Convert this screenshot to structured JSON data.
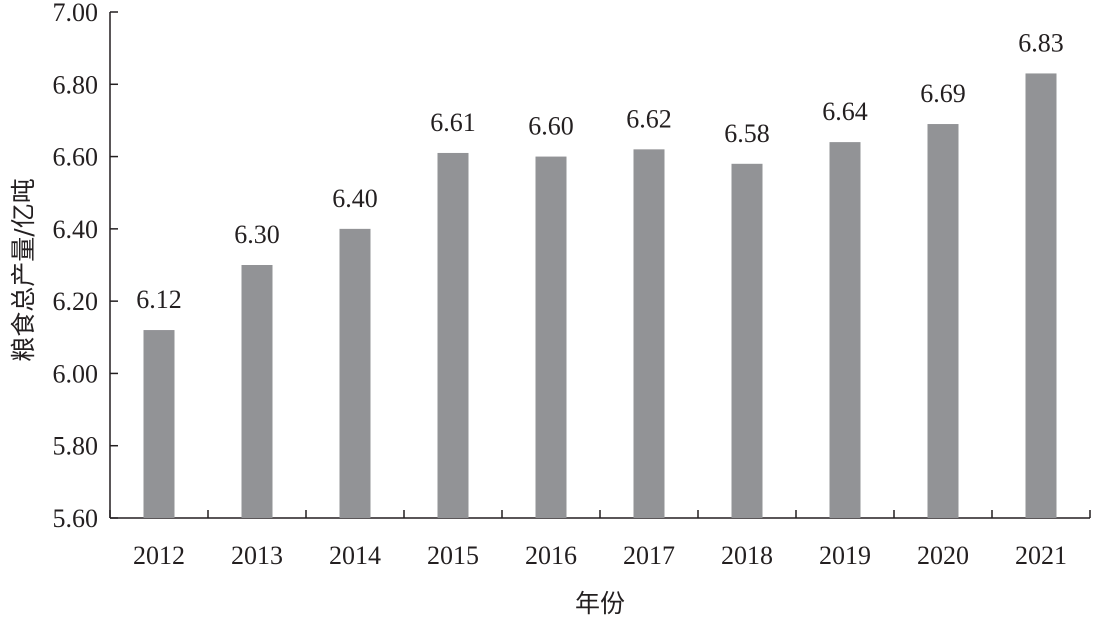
{
  "chart_data": {
    "type": "bar",
    "categories": [
      "2012",
      "2013",
      "2014",
      "2015",
      "2016",
      "2017",
      "2018",
      "2019",
      "2020",
      "2021"
    ],
    "values": [
      6.12,
      6.3,
      6.4,
      6.61,
      6.6,
      6.62,
      6.58,
      6.64,
      6.69,
      6.83
    ],
    "value_labels": [
      "6.12",
      "6.30",
      "6.40",
      "6.61",
      "6.60",
      "6.62",
      "6.58",
      "6.64",
      "6.69",
      "6.83"
    ],
    "xlabel": "年份",
    "ylabel": "粮食总产量/亿吨",
    "ylim": [
      5.6,
      7.0
    ],
    "yticks": [
      5.6,
      5.8,
      6.0,
      6.2,
      6.4,
      6.6,
      6.8,
      7.0
    ],
    "ytick_labels": [
      "5.60",
      "5.80",
      "6.00",
      "6.20",
      "6.40",
      "6.60",
      "6.80",
      "7.00"
    ],
    "bar_color": "#929396",
    "grid": false,
    "legend": "none"
  }
}
